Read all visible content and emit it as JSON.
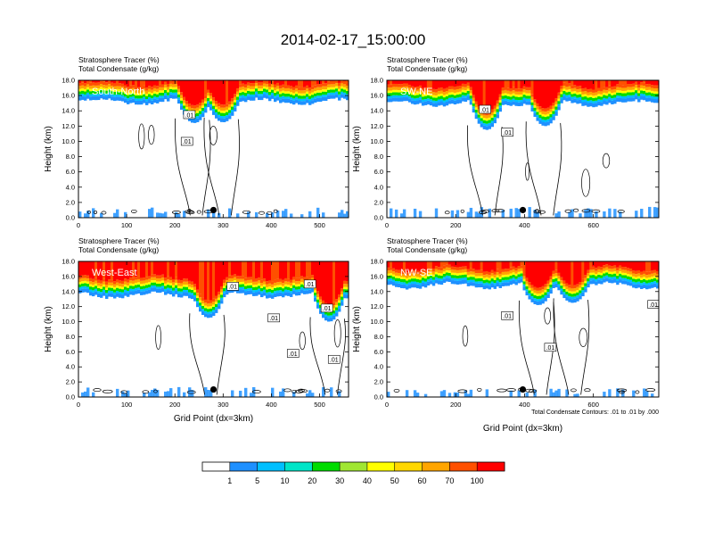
{
  "title": "2014-02-17_15:00:00",
  "colors": {
    "levels": [
      "#ffffff",
      "#1e90ff",
      "#00bfff",
      "#00e5c8",
      "#00dc00",
      "#a0e632",
      "#ffff00",
      "#ffd700",
      "#ffa500",
      "#ff5000",
      "#ff0000"
    ],
    "contour": "#000000",
    "marker": "#000000"
  },
  "chart_data": [
    {
      "type": "heatmap",
      "title": "South-North",
      "field_labels": [
        "Stratosphere Tracer   (%)",
        "Total Condensate   (g/kg)"
      ],
      "ylabel": "Height (km)",
      "xlabel": "",
      "ylim": [
        0,
        18
      ],
      "yticks": [
        "0.0",
        "2.0",
        "4.0",
        "6.0",
        "8.0",
        "10.0",
        "12.0",
        "14.0",
        "16.0",
        "18.0"
      ],
      "xlim": [
        0,
        560
      ],
      "xticks": [
        0,
        100,
        200,
        300,
        400,
        500
      ],
      "tropopause_km": 15.2,
      "mixing_depth_km": 1.5,
      "intrusions": [
        {
          "x": 240,
          "bottom_km": 12.4
        },
        {
          "x": 300,
          "bottom_km": 12.5
        }
      ],
      "marker": {
        "x": 280,
        "y_km": 1.0
      },
      "contour_labels": [
        {
          "text": ".01",
          "x": 230,
          "y_km": 13.5
        },
        {
          "text": ".01",
          "x": 225,
          "y_km": 10.0
        }
      ]
    },
    {
      "type": "heatmap",
      "title": "SW-NE",
      "field_labels": [
        "Stratosphere Tracer   (%)",
        "Total Condensate   (g/kg)"
      ],
      "ylabel": "Height (km)",
      "xlabel": "",
      "ylim": [
        0,
        18
      ],
      "yticks": [
        "0.0",
        "2.0",
        "4.0",
        "6.0",
        "8.0",
        "10.0",
        "12.0",
        "14.0",
        "16.0",
        "18.0"
      ],
      "xlim": [
        0,
        790
      ],
      "xticks": [
        0,
        200,
        400,
        600
      ],
      "tropopause_km": 15.0,
      "mixing_depth_km": 1.6,
      "intrusions": [
        {
          "x": 290,
          "bottom_km": 11.5
        },
        {
          "x": 460,
          "bottom_km": 12.0
        }
      ],
      "marker": {
        "x": 395,
        "y_km": 1.0
      },
      "contour_labels": [
        {
          "text": ".01",
          "x": 285,
          "y_km": 14.2
        },
        {
          "text": ".01",
          "x": 350,
          "y_km": 11.2
        }
      ]
    },
    {
      "type": "heatmap",
      "title": "West-East",
      "field_labels": [
        "Stratosphere Tracer   (%)",
        "Total Condensate   (g/kg)"
      ],
      "ylabel": "Height (km)",
      "xlabel": "Grid Point (dx=3km)",
      "ylim": [
        0,
        18
      ],
      "yticks": [
        "0.0",
        "2.0",
        "4.0",
        "6.0",
        "8.0",
        "10.0",
        "12.0",
        "14.0",
        "16.0",
        "18.0"
      ],
      "xlim": [
        0,
        560
      ],
      "xticks": [
        0,
        100,
        200,
        300,
        400,
        500
      ],
      "tropopause_km": 13.5,
      "mixing_depth_km": 1.5,
      "intrusions": [
        {
          "x": 270,
          "bottom_km": 10.5
        },
        {
          "x": 520,
          "bottom_km": 10.0
        }
      ],
      "marker": {
        "x": 280,
        "y_km": 1.0
      },
      "contour_labels": [
        {
          "text": ".01",
          "x": 320,
          "y_km": 14.7
        },
        {
          "text": ".01",
          "x": 405,
          "y_km": 10.5
        },
        {
          "text": ".01",
          "x": 480,
          "y_km": 15.0
        },
        {
          "text": ".01",
          "x": 515,
          "y_km": 11.8
        },
        {
          "text": ".01",
          "x": 445,
          "y_km": 5.8
        },
        {
          "text": ".01",
          "x": 530,
          "y_km": 5.0
        }
      ]
    },
    {
      "type": "heatmap",
      "title": "NW-SE",
      "field_labels": [
        "Stratosphere Tracer   (%)",
        "Total Condensate   (g/kg)"
      ],
      "ylabel": "Height (km)",
      "xlabel": "Grid Point (dx=3km)",
      "note": "Total Condensate Contours: .01 to .01 by .000",
      "ylim": [
        0,
        18
      ],
      "yticks": [
        "0.0",
        "2.0",
        "4.0",
        "6.0",
        "8.0",
        "10.0",
        "12.0",
        "14.0",
        "16.0",
        "18.0"
      ],
      "xlim": [
        0,
        790
      ],
      "xticks": [
        0,
        200,
        400,
        600
      ],
      "tropopause_km": 14.8,
      "mixing_depth_km": 1.3,
      "intrusions": [
        {
          "x": 440,
          "bottom_km": 12.2
        },
        {
          "x": 540,
          "bottom_km": 12.5
        }
      ],
      "marker": {
        "x": 395,
        "y_km": 1.0
      },
      "contour_labels": [
        {
          "text": ".01",
          "x": 350,
          "y_km": 10.8
        },
        {
          "text": ".01",
          "x": 475,
          "y_km": 6.6
        },
        {
          "text": ".01",
          "x": 775,
          "y_km": 12.3
        }
      ]
    }
  ],
  "colorbar": {
    "labels": [
      "1",
      "5",
      "10",
      "20",
      "30",
      "40",
      "50",
      "60",
      "70",
      "100"
    ]
  }
}
